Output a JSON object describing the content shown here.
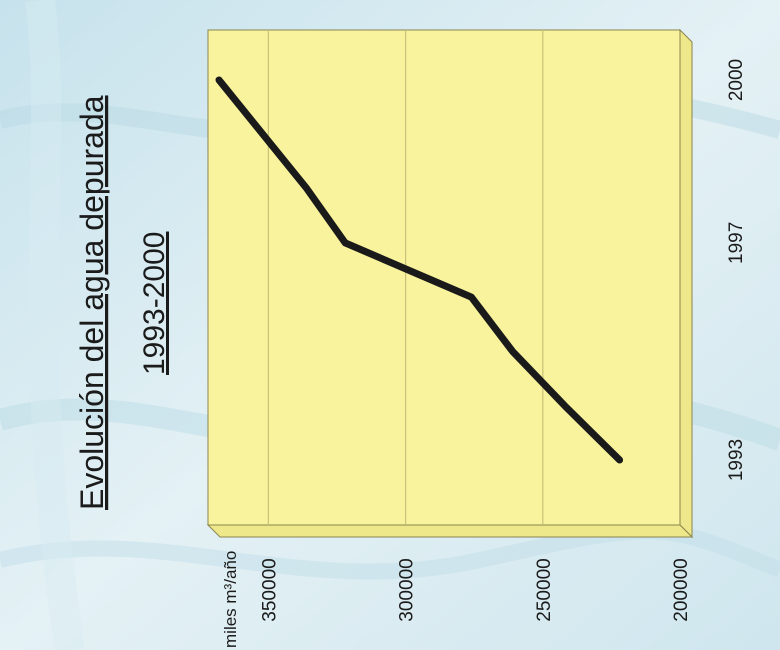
{
  "chart_data": {
    "type": "line",
    "title": "Evolución del agua depurada",
    "subtitle": "1993-2000",
    "ylabel": "miles m³/año",
    "x_ticks": [
      "1993",
      "1997",
      "2000"
    ],
    "y_ticks": [
      "200000",
      "250000",
      "300000",
      "350000"
    ],
    "ylim": [
      200000,
      372000
    ],
    "xlim": [
      1993,
      2000
    ],
    "grid": true,
    "orientation": "rotated 90° counter-clockwise",
    "series": [
      {
        "color": "#1a1a1a",
        "x": [
          1993,
          1994,
          1995,
          1996,
          1997,
          1998,
          1999,
          2000
        ],
        "y": [
          222000,
          242000,
          261000,
          276000,
          322000,
          336000,
          352000,
          368000
        ]
      }
    ]
  },
  "colors": {
    "plot_face": "#f8f39c",
    "plot_side": "#efe88a",
    "background": "#d9ecf2",
    "grid": "#c9c27a"
  }
}
